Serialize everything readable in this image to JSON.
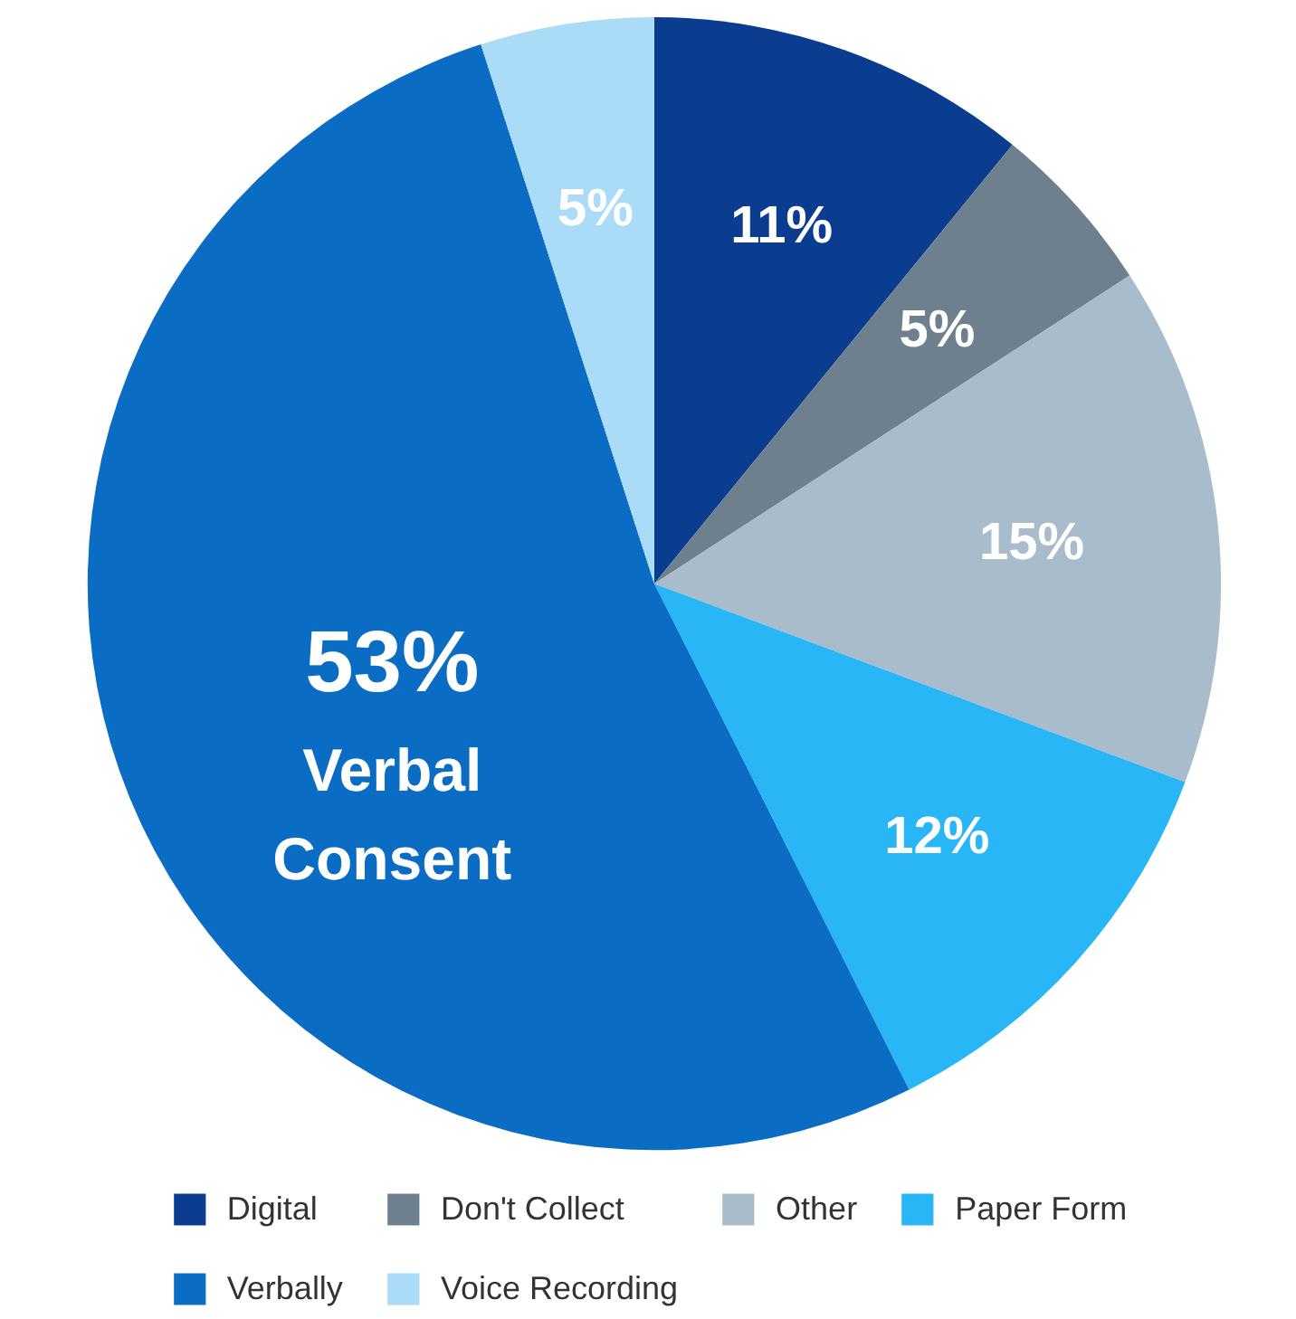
{
  "chart_data": {
    "type": "pie",
    "categories": [
      "Digital",
      "Don't Collect",
      "Other",
      "Paper Form",
      "Verbally",
      "Voice Recording"
    ],
    "values": [
      11,
      5,
      15,
      12,
      53,
      5
    ],
    "colors": [
      "#0a3d8f",
      "#6e7f8d",
      "#a9bccb",
      "#29b6f6",
      "#0b6cc4",
      "#aadcf7"
    ],
    "value_labels": [
      "11%",
      "5%",
      "15%",
      "12%",
      "53%",
      "5%"
    ],
    "annotations": [
      "Verbal Consent"
    ],
    "legend": "bottom"
  }
}
